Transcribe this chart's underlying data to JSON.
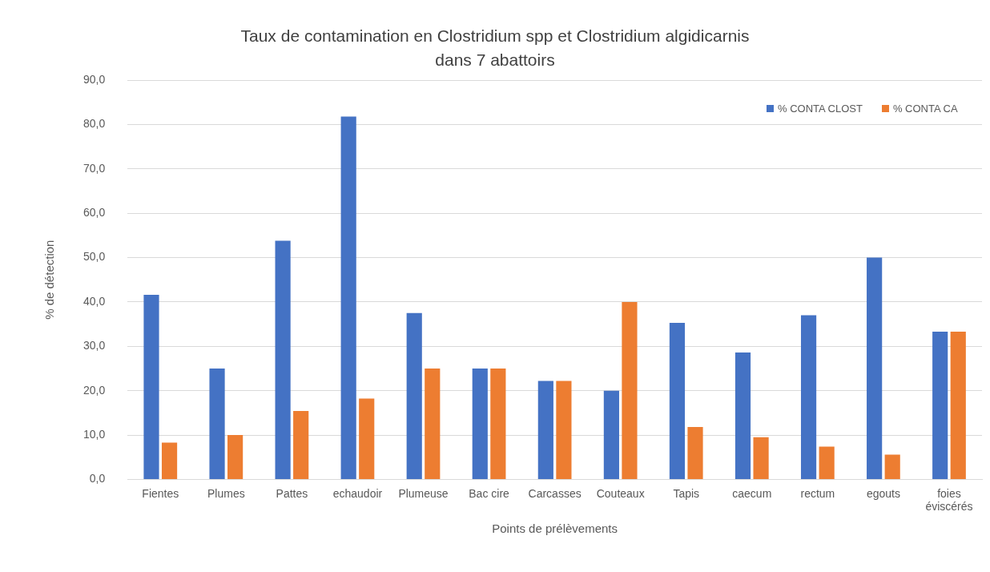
{
  "chart_data": {
    "type": "bar",
    "title": "Taux de contamination en Clostridium spp et Clostridium algidicarnis\ndans 7 abattoirs",
    "xlabel": "Points de prélèvements",
    "ylabel": "% de détection",
    "categories": [
      "Fientes",
      "Plumes",
      "Pattes",
      "echaudoir",
      "Plumeuse",
      "Bac cire",
      "Carcasses",
      "Couteaux",
      "Tapis",
      "caecum",
      "rectum",
      "egouts",
      "foies éviscérés"
    ],
    "series": [
      {
        "name": "% CONTA CLOST",
        "color": "#4472c4",
        "values": [
          41.6,
          25.0,
          53.8,
          81.8,
          37.5,
          25.0,
          22.2,
          20.0,
          35.3,
          28.6,
          37.0,
          50.0,
          33.3
        ]
      },
      {
        "name": "% CONTA CA",
        "color": "#ed7d31",
        "values": [
          8.3,
          10.0,
          15.4,
          18.2,
          25.0,
          25.0,
          22.2,
          40.0,
          11.8,
          9.5,
          7.4,
          5.6,
          33.3
        ]
      }
    ],
    "ylim": [
      0,
      90
    ],
    "yticks": [
      {
        "value": 0,
        "label": "0,0"
      },
      {
        "value": 10,
        "label": "10,0"
      },
      {
        "value": 20,
        "label": "20,0"
      },
      {
        "value": 30,
        "label": "30,0"
      },
      {
        "value": 40,
        "label": "40,0"
      },
      {
        "value": 50,
        "label": "50,0"
      },
      {
        "value": 60,
        "label": "60,0"
      },
      {
        "value": 70,
        "label": "70,0"
      },
      {
        "value": 80,
        "label": "80,0"
      },
      {
        "value": 90,
        "label": "90,0"
      }
    ],
    "grid": "y",
    "legend": "top right"
  }
}
